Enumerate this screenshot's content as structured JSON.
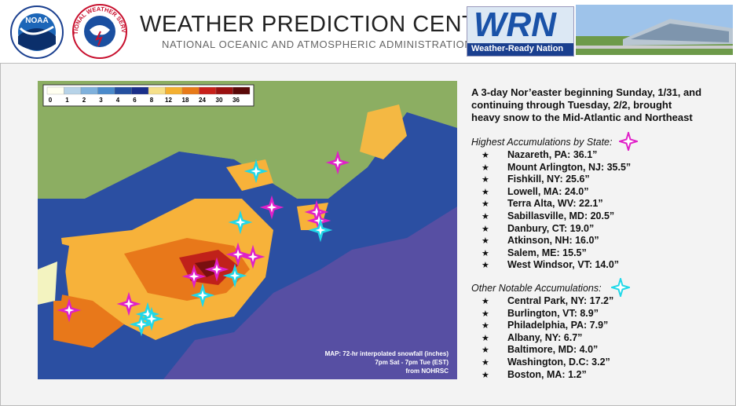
{
  "header": {
    "title": "WEATHER PREDICTION CENTER",
    "subtitle": "NATIONAL OCEANIC AND ATMOSPHERIC ADMINISTRATION",
    "logos": {
      "noaa": "NOAA",
      "nws": "NATIONAL WEATHER SERVICE",
      "wrn": "WRN",
      "wrn_tagline": "Weather-Ready Nation"
    }
  },
  "map": {
    "legend": [
      "0",
      "1",
      "2",
      "3",
      "4",
      "6",
      "8",
      "12",
      "18",
      "24",
      "30",
      "36"
    ],
    "caption": [
      "MAP: 72-hr interpolated snowfall (inches)",
      "7pm Sat - 7pm Tue (EST)",
      "from NOHRSC"
    ]
  },
  "summary": [
    "A 3-day Nor’easter beginning Sunday, 1/31, and",
    "continuing through Tuesday, 2/2, brought",
    "heavy snow to the Mid-Atlantic and Northeast"
  ],
  "highest": {
    "heading": "Highest Accumulations by State:",
    "items": [
      "Nazareth, PA: 36.1”",
      "Mount Arlington, NJ: 35.5”",
      "Fishkill, NY: 25.6”",
      "Lowell, MA: 24.0”",
      "Terra Alta, WV: 22.1”",
      "Sabillasville, MD: 20.5”",
      "Danbury, CT: 19.0”",
      "Atkinson, NH: 16.0”",
      "Salem, ME: 15.5”",
      "West Windsor, VT: 14.0”"
    ]
  },
  "other": {
    "heading": "Other Notable Accumulations:",
    "items": [
      "Central Park, NY: 17.2”",
      "Burlington, VT: 8.9”",
      "Philadelphia, PA: 7.9”",
      "Albany, NY: 6.7”",
      "Baltimore, MD: 4.0”",
      "Washington, D.C: 3.2”",
      "Boston, MA: 1.2”"
    ]
  }
}
